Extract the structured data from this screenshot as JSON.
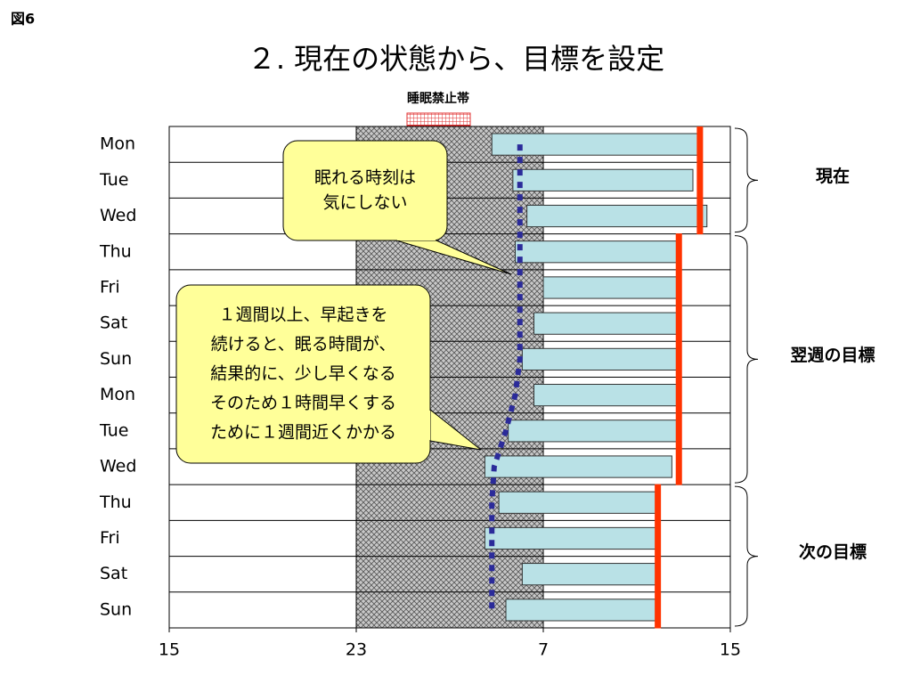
{
  "figure_label": "図6",
  "chart_data": {
    "type": "floating-bar",
    "title": "２. 現在の状態から、目標を設定",
    "legend_label": "睡眠禁止帯",
    "categories": [
      "Mon",
      "Tue",
      "Wed",
      "Thu",
      "Fri",
      "Sat",
      "Sun",
      "Mon",
      "Tue",
      "Wed",
      "Thu",
      "Fri",
      "Sat",
      "Sun"
    ],
    "starts": [
      28.8,
      29.7,
      30.3,
      29.8,
      31,
      30.6,
      30.1,
      30.6,
      29.5,
      28.5,
      29.1,
      28.5,
      30.1,
      29.4
    ],
    "ends": [
      37.6,
      37.4,
      38,
      36.8,
      36.8,
      36.8,
      36.8,
      36.8,
      36.8,
      36.5,
      35.9,
      35.9,
      35.9,
      35.9
    ],
    "bedtime_target": [
      30,
      30,
      30,
      30,
      30,
      30,
      30,
      29.8,
      29.4,
      28.9,
      28.8,
      28.8,
      28.8,
      28.8
    ],
    "wake_target": [
      37.7,
      37.7,
      37.7,
      36.8,
      36.8,
      36.8,
      36.8,
      36.8,
      36.8,
      36.8,
      35.9,
      35.9,
      35.9,
      35.9
    ],
    "shade": [
      23,
      31
    ],
    "xlim": [
      15,
      39
    ],
    "xticks": [
      15,
      23,
      {
        "value": 31,
        "label": "7"
      },
      {
        "value": 39,
        "label": "15"
      }
    ],
    "bar_color": "#b9e1e6",
    "wake_color": "#ff3300",
    "bedtime_color": "#2b2b9a",
    "groups": [
      "現在",
      "翌週の目標",
      "次の目標"
    ],
    "callouts": [
      [
        "眠れる時刻は",
        "気にしない"
      ],
      [
        "１週間以上、早起きを",
        "続けると、眠る時間が、",
        "結果的に、少し早くなる",
        "そのため１時間早くする",
        "ために１週間近くかかる"
      ]
    ]
  }
}
